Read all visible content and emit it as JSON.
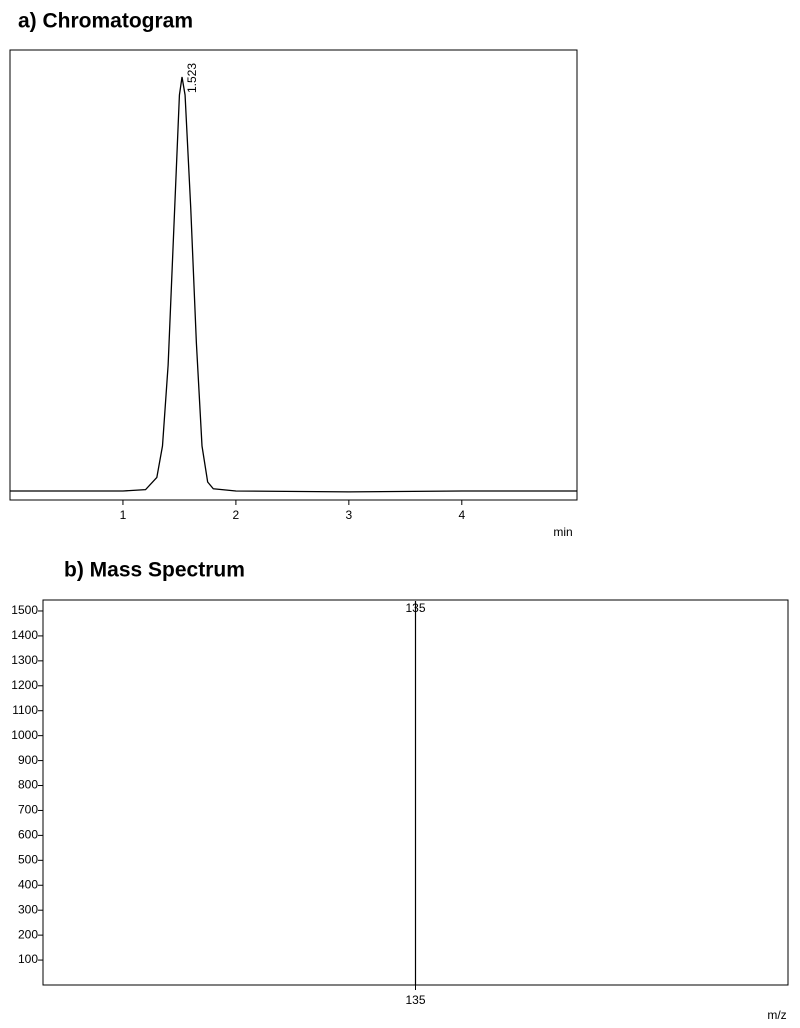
{
  "chart_data": [
    {
      "type": "line",
      "title": "a) Chromatogram",
      "xlabel": "min",
      "x": [
        0,
        0.5,
        1.0,
        1.2,
        1.3,
        1.35,
        1.4,
        1.45,
        1.5,
        1.523,
        1.55,
        1.6,
        1.65,
        1.7,
        1.75,
        1.8,
        2.0,
        3.0,
        4.0,
        5.0,
        5.02
      ],
      "values": [
        2,
        2,
        2,
        2.3,
        5,
        12,
        30,
        60,
        90,
        94,
        90,
        65,
        35,
        12,
        4,
        2.5,
        2,
        1.8,
        2,
        2,
        2
      ],
      "color": "#000000",
      "xlim": [
        0,
        5.02
      ],
      "ylim": [
        0,
        100
      ],
      "xticks": [
        1,
        2,
        3,
        4
      ],
      "annotations": [
        {
          "text": "1.523",
          "x": 1.523,
          "y": 94
        }
      ]
    },
    {
      "type": "bar",
      "title": "b) Mass Spectrum",
      "xlabel": "m/z",
      "x": [
        135
      ],
      "values": [
        1540
      ],
      "color": "#000000",
      "xlim": [
        50,
        220
      ],
      "ylim": [
        0,
        1544
      ],
      "xticks": [
        135
      ],
      "yticks": [
        100,
        200,
        300,
        400,
        500,
        600,
        700,
        800,
        900,
        1000,
        1100,
        1200,
        1300,
        1400,
        1500
      ]
    }
  ]
}
